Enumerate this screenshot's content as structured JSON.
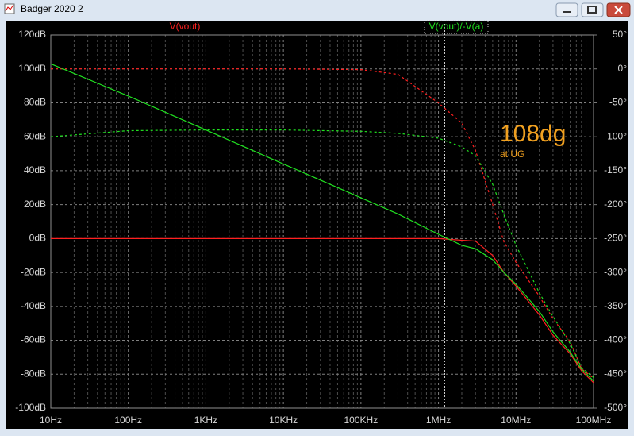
{
  "window": {
    "title": "Badger 2020 2"
  },
  "chart_data": {
    "type": "line",
    "log_x": true,
    "grid": true,
    "x": [
      10,
      100,
      1000,
      10000,
      100000,
      300000,
      1000000,
      2000000,
      3000000,
      5000000,
      7000000,
      10000000,
      20000000,
      30000000,
      50000000,
      70000000,
      100000000
    ],
    "xlim": [
      10,
      100000000
    ],
    "xticks": [
      {
        "value": 10,
        "label": "10Hz"
      },
      {
        "value": 100,
        "label": "100Hz"
      },
      {
        "value": 1000,
        "label": "1KHz"
      },
      {
        "value": 10000,
        "label": "10KHz"
      },
      {
        "value": 100000,
        "label": "100KHz"
      },
      {
        "value": 1000000,
        "label": "1MHz"
      },
      {
        "value": 10000000,
        "label": "10MHz"
      },
      {
        "value": 100000000,
        "label": "100MHz"
      }
    ],
    "ylim": [
      -100,
      120
    ],
    "yticks": [
      {
        "value": 120,
        "label": "120dB"
      },
      {
        "value": 100,
        "label": "100dB"
      },
      {
        "value": 80,
        "label": "80dB"
      },
      {
        "value": 60,
        "label": "60dB"
      },
      {
        "value": 40,
        "label": "40dB"
      },
      {
        "value": 20,
        "label": "20dB"
      },
      {
        "value": 0,
        "label": "0dB"
      },
      {
        "value": -20,
        "label": "-20dB"
      },
      {
        "value": -40,
        "label": "-40dB"
      },
      {
        "value": -60,
        "label": "-60dB"
      },
      {
        "value": -80,
        "label": "-80dB"
      },
      {
        "value": -100,
        "label": "-100dB"
      }
    ],
    "y2lim": [
      -500,
      50
    ],
    "y2ticks": [
      {
        "value": 50,
        "label": "50°"
      },
      {
        "value": 0,
        "label": "0°"
      },
      {
        "value": -50,
        "label": "-50°"
      },
      {
        "value": -100,
        "label": "-100°"
      },
      {
        "value": -150,
        "label": "-150°"
      },
      {
        "value": -200,
        "label": "-200°"
      },
      {
        "value": -250,
        "label": "-250°"
      },
      {
        "value": -300,
        "label": "-300°"
      },
      {
        "value": -350,
        "label": "-350°"
      },
      {
        "value": -400,
        "label": "-400°"
      },
      {
        "value": -450,
        "label": "-450°"
      },
      {
        "value": -500,
        "label": "-500°"
      }
    ],
    "series": [
      {
        "name": "V(vout)",
        "color": "#ff2020",
        "values": [
          0,
          0,
          0,
          0,
          0,
          0,
          0,
          -1,
          -1.5,
          -10,
          -20,
          -28,
          -45,
          -57,
          -68,
          -78,
          -85
        ],
        "phase": [
          0,
          0,
          0,
          0,
          -1,
          -8,
          -50,
          -80,
          -120,
          -200,
          -255,
          -285,
          -335,
          -368,
          -402,
          -442,
          -456
        ]
      },
      {
        "name": "V(vout)/-V(a)",
        "color": "#20e020",
        "values": [
          103,
          84,
          64,
          44,
          24,
          14.5,
          2.5,
          -4,
          -6,
          -12.5,
          -20,
          -27,
          -43,
          -55,
          -67,
          -77,
          -84
        ],
        "phase": [
          -100,
          -91,
          -90,
          -90,
          -92,
          -95,
          -102,
          -115,
          -128,
          -170,
          -215,
          -260,
          -330,
          -365,
          -405,
          -440,
          -455
        ]
      }
    ],
    "cursor": 1200000,
    "annotations": [
      "108dg",
      "at UG"
    ]
  }
}
